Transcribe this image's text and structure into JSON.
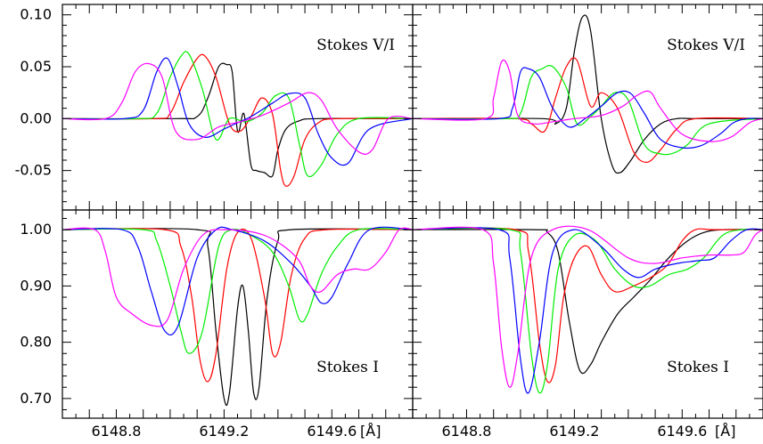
{
  "chart_data": {
    "type": "line",
    "x_tick_labels": [
      "6148.8",
      "6149.2",
      "6149.6"
    ],
    "x_unit_label": "[Å]",
    "xlim": [
      6148.6,
      6149.9
    ],
    "colors": {
      "black": "#000000",
      "red": "#ff0000",
      "green": "#00ee00",
      "blue": "#0000ff",
      "magenta": "#ff00ff"
    },
    "panels": [
      {
        "id": "v-left",
        "row": "top",
        "col": "left",
        "label": "Stokes V/I",
        "ylim": [
          -0.088,
          0.11
        ],
        "y_ticks": [
          {
            "value": 0.1,
            "label": "0.10"
          },
          {
            "value": 0.05,
            "label": "0.05"
          },
          {
            "value": 0.0,
            "label": "0.00"
          },
          {
            "value": -0.05,
            "label": "-0.05"
          }
        ],
        "series": [
          {
            "color": "black",
            "x": [
              6148.6,
              6149.02,
              6149.1,
              6149.14,
              6149.18,
              6149.21,
              6149.23,
              6149.25,
              6149.27,
              6149.28,
              6149.3,
              6149.32,
              6149.35,
              6149.38,
              6149.4,
              6149.43,
              6149.48,
              6149.55,
              6149.9
            ],
            "y": [
              0,
              0,
              0.002,
              0.02,
              0.05,
              0.052,
              0.045,
              -0.012,
              0.005,
              -0.005,
              -0.045,
              -0.05,
              -0.052,
              -0.055,
              -0.03,
              -0.01,
              -0.002,
              0,
              0
            ]
          },
          {
            "color": "red",
            "x": [
              6148.6,
              6148.94,
              6149.0,
              6149.05,
              6149.1,
              6149.13,
              6149.17,
              6149.22,
              6149.26,
              6149.3,
              6149.34,
              6149.38,
              6149.41,
              6149.43,
              6149.46,
              6149.5,
              6149.55,
              6149.62,
              6149.9
            ],
            "y": [
              0,
              0,
              0.005,
              0.035,
              0.058,
              0.06,
              0.04,
              -0.005,
              -0.012,
              0.002,
              0.02,
              0.004,
              -0.05,
              -0.065,
              -0.055,
              -0.02,
              -0.004,
              0,
              0
            ]
          },
          {
            "color": "green",
            "x": [
              6148.6,
              6148.88,
              6148.95,
              6149.0,
              6149.04,
              6149.07,
              6149.12,
              6149.17,
              6149.22,
              6149.28,
              6149.34,
              6149.39,
              6149.44,
              6149.48,
              6149.51,
              6149.56,
              6149.62,
              6149.7,
              6149.9
            ],
            "y": [
              0,
              0,
              0.005,
              0.04,
              0.06,
              0.062,
              0.028,
              -0.02,
              0,
              -0.003,
              0.005,
              0.022,
              0.02,
              -0.025,
              -0.055,
              -0.045,
              -0.015,
              0,
              0
            ]
          },
          {
            "color": "blue",
            "x": [
              6148.6,
              6148.83,
              6148.9,
              6148.95,
              6148.99,
              6149.03,
              6149.07,
              6149.13,
              6149.2,
              6149.25,
              6149.3,
              6149.38,
              6149.44,
              6149.5,
              6149.55,
              6149.6,
              6149.66,
              6149.74,
              6149.9
            ],
            "y": [
              0,
              0,
              0.008,
              0.045,
              0.058,
              0.03,
              -0.005,
              -0.018,
              -0.01,
              -0.004,
              0.002,
              0.015,
              0.024,
              0.02,
              -0.015,
              -0.038,
              -0.043,
              -0.01,
              0
            ]
          },
          {
            "color": "magenta",
            "x": [
              6148.6,
              6148.76,
              6148.82,
              6148.87,
              6148.92,
              6148.97,
              6149.02,
              6149.1,
              6149.18,
              6149.26,
              6149.34,
              6149.44,
              6149.51,
              6149.56,
              6149.62,
              6149.7,
              6149.75,
              6149.81,
              6149.9
            ],
            "y": [
              0,
              0,
              0.015,
              0.045,
              0.053,
              0.04,
              -0.012,
              -0.02,
              -0.008,
              -0.003,
              0.003,
              0.015,
              0.025,
              0.018,
              -0.01,
              -0.032,
              -0.03,
              0,
              0
            ]
          }
        ]
      },
      {
        "id": "v-right",
        "row": "top",
        "col": "right",
        "label": "Stokes V/I",
        "ylim": [
          -0.088,
          0.11
        ],
        "y_ticks": [],
        "series": [
          {
            "color": "black",
            "x": [
              6148.6,
              6149.08,
              6149.13,
              6149.17,
              6149.2,
              6149.23,
              6149.26,
              6149.3,
              6149.34,
              6149.37,
              6149.41,
              6149.46,
              6149.52,
              6149.58,
              6149.65,
              6149.9
            ],
            "y": [
              0,
              0,
              -0.005,
              0.01,
              0.065,
              0.098,
              0.085,
              0,
              -0.045,
              -0.052,
              -0.04,
              -0.02,
              -0.005,
              0,
              0,
              0
            ]
          },
          {
            "color": "red",
            "x": [
              6148.6,
              6148.98,
              6149.04,
              6149.09,
              6149.13,
              6149.17,
              6149.21,
              6149.26,
              6149.3,
              6149.36,
              6149.42,
              6149.47,
              6149.52,
              6149.58,
              6149.65,
              6149.9
            ],
            "y": [
              0,
              0,
              -0.005,
              -0.012,
              0.02,
              0.05,
              0.056,
              0.012,
              0.025,
              0.01,
              -0.032,
              -0.042,
              -0.03,
              -0.01,
              0,
              0
            ]
          },
          {
            "color": "green",
            "x": [
              6148.6,
              6148.95,
              6149.0,
              6149.04,
              6149.08,
              6149.12,
              6149.17,
              6149.21,
              6149.26,
              6149.3,
              6149.35,
              6149.4,
              6149.46,
              6149.52,
              6149.57,
              6149.62,
              6149.7,
              6149.9
            ],
            "y": [
              0,
              0,
              0.005,
              0.04,
              0.048,
              0.05,
              0.03,
              -0.005,
              0.002,
              0.012,
              0.025,
              0.018,
              -0.025,
              -0.034,
              -0.033,
              -0.025,
              -0.005,
              0
            ]
          },
          {
            "color": "blue",
            "x": [
              6148.6,
              6148.92,
              6148.97,
              6149.0,
              6149.03,
              6149.07,
              6149.12,
              6149.18,
              6149.24,
              6149.3,
              6149.36,
              6149.41,
              6149.46,
              6149.52,
              6149.6,
              6149.67,
              6149.74,
              6149.79,
              6149.84,
              6149.9
            ],
            "y": [
              0,
              0,
              0.01,
              0.045,
              0.048,
              0.04,
              0.01,
              -0.008,
              0,
              0.012,
              0.025,
              0.024,
              0.005,
              -0.02,
              -0.028,
              -0.026,
              -0.015,
              -0.004,
              0,
              0
            ]
          },
          {
            "color": "magenta",
            "x": [
              6148.6,
              6148.87,
              6148.9,
              6148.93,
              6148.96,
              6148.99,
              6149.05,
              6149.12,
              6149.2,
              6149.3,
              6149.38,
              6149.43,
              6149.48,
              6149.52,
              6149.6,
              6149.7,
              6149.78,
              6149.85,
              6149.9
            ],
            "y": [
              0,
              0,
              0.02,
              0.055,
              0.045,
              0.003,
              -0.005,
              -0.003,
              0,
              0.003,
              0.012,
              0.022,
              0.026,
              0.01,
              -0.015,
              -0.022,
              -0.018,
              -0.004,
              0
            ]
          }
        ]
      },
      {
        "id": "i-left",
        "row": "bottom",
        "col": "left",
        "label": "Stokes I",
        "ylim": [
          0.665,
          1.035
        ],
        "y_ticks": [
          {
            "value": 1.0,
            "label": "1.00"
          },
          {
            "value": 0.9,
            "label": "0.90"
          },
          {
            "value": 0.8,
            "label": "0.80"
          },
          {
            "value": 0.7,
            "label": "0.70"
          }
        ],
        "series": [
          {
            "color": "black",
            "x": [
              6148.6,
              6149.1,
              6149.14,
              6149.17,
              6149.2,
              6149.22,
              6149.25,
              6149.27,
              6149.29,
              6149.31,
              6149.33,
              6149.36,
              6149.4,
              6149.45,
              6149.9
            ],
            "y": [
              1,
              1,
              0.97,
              0.82,
              0.7,
              0.71,
              0.86,
              0.9,
              0.82,
              0.71,
              0.72,
              0.88,
              0.98,
              1,
              1
            ]
          },
          {
            "color": "red",
            "x": [
              6148.6,
              6148.98,
              6149.04,
              6149.08,
              6149.11,
              6149.14,
              6149.17,
              6149.21,
              6149.25,
              6149.3,
              6149.35,
              6149.38,
              6149.41,
              6149.45,
              6149.5,
              6149.58,
              6149.9
            ],
            "y": [
              1,
              1,
              0.97,
              0.88,
              0.77,
              0.73,
              0.78,
              0.93,
              0.995,
              0.985,
              0.88,
              0.78,
              0.8,
              0.92,
              0.985,
              1,
              1
            ]
          },
          {
            "color": "green",
            "x": [
              6148.6,
              6148.9,
              6148.95,
              6149.0,
              6149.04,
              6149.07,
              6149.12,
              6149.18,
              6149.23,
              6149.3,
              6149.38,
              6149.44,
              6149.48,
              6149.51,
              6149.56,
              6149.62,
              6149.7,
              6149.9
            ],
            "y": [
              1,
              1,
              0.98,
              0.9,
              0.82,
              0.78,
              0.82,
              0.97,
              1,
              0.99,
              0.96,
              0.9,
              0.84,
              0.85,
              0.92,
              0.97,
              1,
              1
            ]
          },
          {
            "color": "blue",
            "x": [
              6148.6,
              6148.82,
              6148.88,
              6148.93,
              6148.98,
              6149.03,
              6149.1,
              6149.17,
              6149.23,
              6149.35,
              6149.45,
              6149.52,
              6149.56,
              6149.6,
              6149.66,
              6149.74,
              6149.9
            ],
            "y": [
              1,
              1,
              0.97,
              0.89,
              0.82,
              0.83,
              0.95,
              1,
              1,
              0.98,
              0.94,
              0.9,
              0.87,
              0.88,
              0.94,
              1,
              1
            ]
          },
          {
            "color": "magenta",
            "x": [
              6148.6,
              6148.72,
              6148.76,
              6148.8,
              6148.86,
              6148.93,
              6148.99,
              6149.05,
              6149.12,
              6149.2,
              6149.35,
              6149.47,
              6149.52,
              6149.56,
              6149.62,
              6149.68,
              6149.74,
              6149.8,
              6149.85,
              6149.9
            ],
            "y": [
              1,
              1,
              0.96,
              0.88,
              0.85,
              0.83,
              0.84,
              0.93,
              0.99,
              1,
              0.99,
              0.95,
              0.9,
              0.89,
              0.92,
              0.93,
              0.93,
              0.96,
              1,
              1
            ]
          }
        ]
      },
      {
        "id": "i-right",
        "row": "bottom",
        "col": "right",
        "label": "Stokes I",
        "ylim": [
          0.665,
          1.035
        ],
        "y_ticks": [],
        "series": [
          {
            "color": "black",
            "x": [
              6148.6,
              6149.05,
              6149.1,
              6149.14,
              6149.18,
              6149.22,
              6149.26,
              6149.3,
              6149.36,
              6149.42,
              6149.48,
              6149.55,
              6149.62,
              6149.68,
              6149.75,
              6149.9
            ],
            "y": [
              1,
              1,
              0.995,
              0.96,
              0.84,
              0.75,
              0.76,
              0.8,
              0.85,
              0.88,
              0.91,
              0.95,
              0.98,
              0.995,
              1,
              1
            ]
          },
          {
            "color": "red",
            "x": [
              6148.6,
              6148.98,
              6149.03,
              6149.07,
              6149.1,
              6149.13,
              6149.16,
              6149.2,
              6149.25,
              6149.3,
              6149.35,
              6149.42,
              6149.5,
              6149.55,
              6149.6,
              6149.65,
              6149.72,
              6149.9
            ],
            "y": [
              1,
              1,
              0.96,
              0.8,
              0.73,
              0.76,
              0.88,
              0.95,
              0.97,
              0.92,
              0.89,
              0.9,
              0.92,
              0.94,
              0.98,
              1,
              1,
              1
            ]
          },
          {
            "color": "green",
            "x": [
              6148.6,
              6148.96,
              6149.0,
              6149.04,
              6149.07,
              6149.1,
              6149.14,
              6149.2,
              6149.28,
              6149.35,
              6149.42,
              6149.48,
              6149.55,
              6149.62,
              6149.68,
              6149.75,
              6149.82,
              6149.9
            ],
            "y": [
              1,
              1,
              0.96,
              0.78,
              0.71,
              0.76,
              0.93,
              0.99,
              0.98,
              0.93,
              0.9,
              0.9,
              0.92,
              0.93,
              0.95,
              0.99,
              1,
              1
            ]
          },
          {
            "color": "blue",
            "x": [
              6148.6,
              6148.92,
              6148.96,
              6149.0,
              6149.03,
              6149.07,
              6149.12,
              6149.2,
              6149.3,
              6149.38,
              6149.44,
              6149.5,
              6149.58,
              6149.66,
              6149.72,
              6149.78,
              6149.84,
              6149.9
            ],
            "y": [
              1,
              1,
              0.95,
              0.77,
              0.71,
              0.8,
              0.96,
              1,
              0.97,
              0.93,
              0.915,
              0.93,
              0.94,
              0.945,
              0.95,
              0.98,
              1,
              1
            ]
          },
          {
            "color": "magenta",
            "x": [
              6148.6,
              6148.86,
              6148.9,
              6148.93,
              6148.96,
              6148.99,
              6149.04,
              6149.12,
              6149.25,
              6149.4,
              6149.5,
              6149.6,
              6149.7,
              6149.78,
              6149.83,
              6149.87,
              6149.9
            ],
            "y": [
              1,
              1,
              0.94,
              0.79,
              0.72,
              0.78,
              0.95,
              1,
              1,
              0.95,
              0.94,
              0.95,
              0.955,
              0.955,
              0.96,
              0.99,
              1
            ]
          }
        ]
      }
    ]
  }
}
